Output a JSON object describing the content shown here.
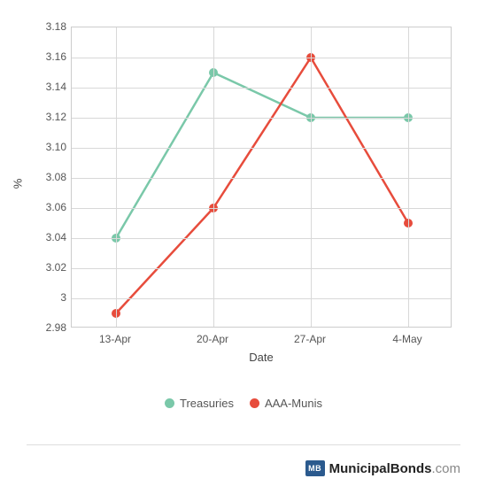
{
  "chart": {
    "type": "line",
    "xlabel": "Date",
    "ylabel": "%",
    "categories": [
      "13-Apr",
      "20-Apr",
      "27-Apr",
      "4-May"
    ],
    "ylim": [
      2.98,
      3.18
    ],
    "ytick_step": 0.02,
    "yticks": [
      "2.98",
      "3",
      "3.02",
      "3.04",
      "3.06",
      "3.08",
      "3.10",
      "3.12",
      "3.14",
      "3.16",
      "3.18"
    ],
    "background_color": "#ffffff",
    "grid_color": "#d8d8d8",
    "border_color": "#cccccc",
    "label_fontsize": 13,
    "tick_fontsize": 12,
    "line_width": 2.5,
    "marker_radius": 5,
    "series": [
      {
        "name": "Treasuries",
        "color": "#7ac8a9",
        "values": [
          3.04,
          3.15,
          3.12,
          3.12
        ]
      },
      {
        "name": "AAA-Munis",
        "color": "#e74c3c",
        "values": [
          2.99,
          3.06,
          3.16,
          3.05
        ]
      }
    ]
  },
  "branding": {
    "logo_text": "MB",
    "logo_bg": "#2b5a8e",
    "name_bold": "MunicipalBonds",
    "name_light": ".com"
  }
}
